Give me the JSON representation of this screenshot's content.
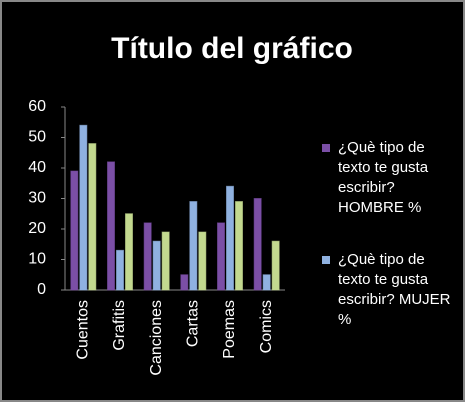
{
  "chart_data": {
    "type": "bar",
    "title": "Título del gráfico",
    "categories": [
      "Cuentos",
      "Grafitis",
      "Canciones",
      "Cartas",
      "Poemas",
      "Comics"
    ],
    "series": [
      {
        "name": "¿Què tipo de texto te gusta escribir? HOMBRE %",
        "color": "#7b4fa6",
        "values": [
          39,
          42,
          22,
          5,
          22,
          30
        ]
      },
      {
        "name": "¿Què tipo de texto te gusta escribir? MUJER %",
        "color": "#8fb1e0",
        "values": [
          54,
          13,
          16,
          29,
          34,
          5
        ]
      },
      {
        "color": "#c3d98f",
        "values": [
          48,
          25,
          19,
          19,
          29,
          16
        ]
      }
    ],
    "ylim": [
      0,
      60
    ],
    "yticks": [
      0,
      10,
      20,
      30,
      40,
      50,
      60
    ],
    "grid": false,
    "legend": "right"
  }
}
